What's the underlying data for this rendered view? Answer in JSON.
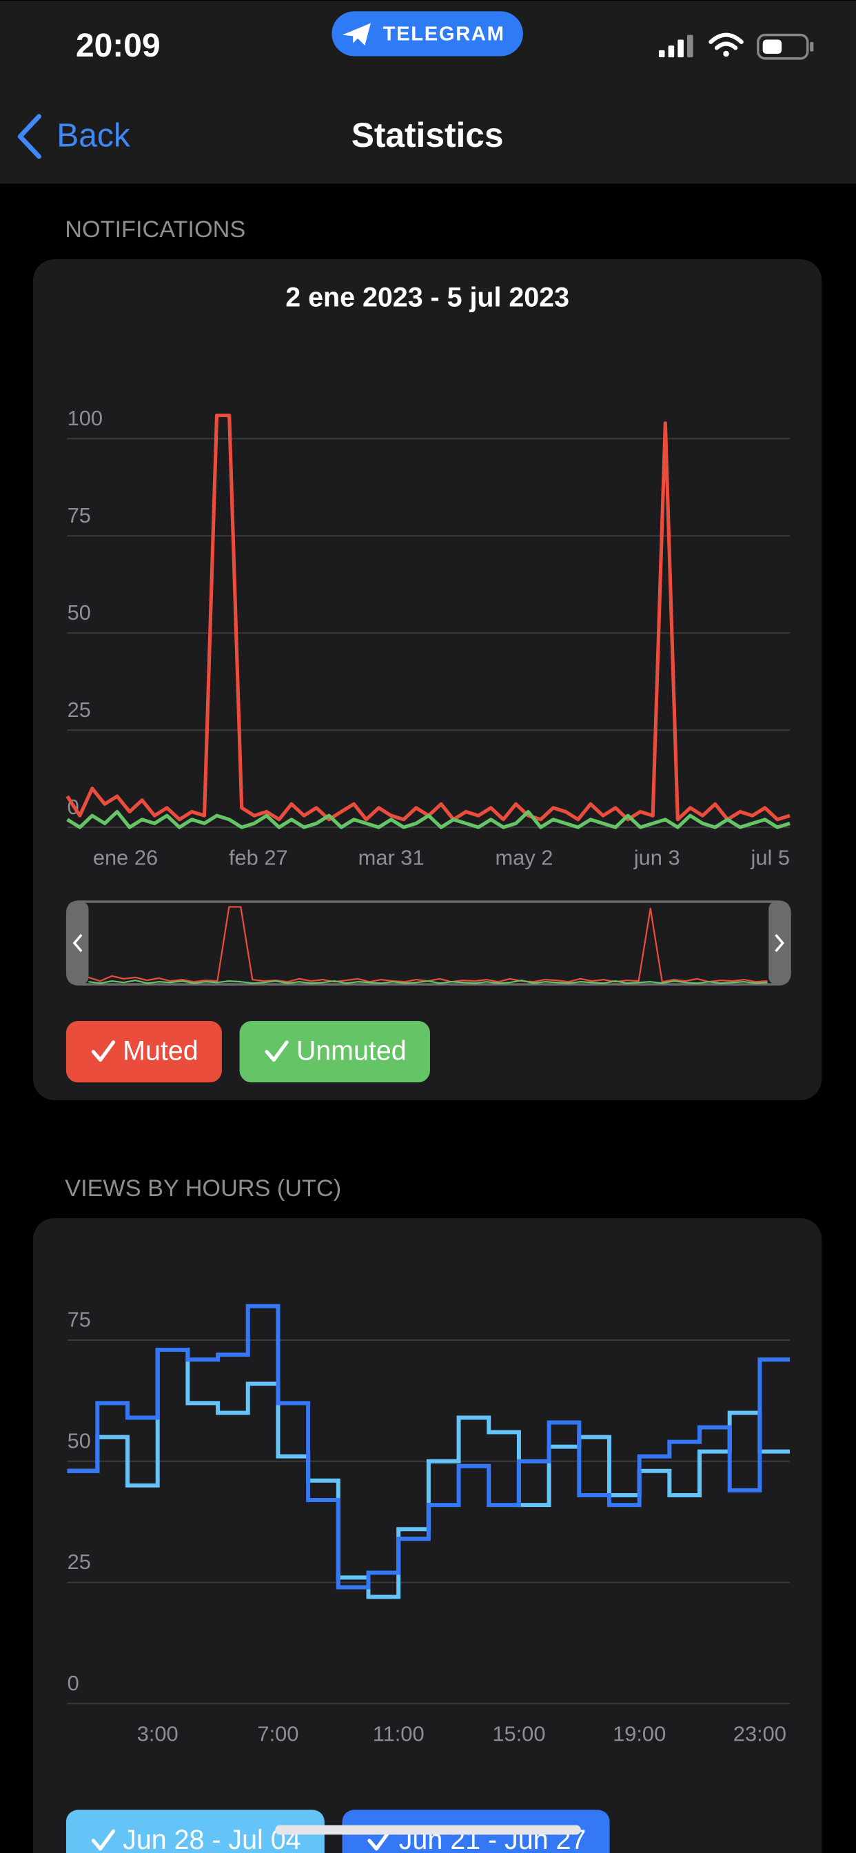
{
  "status_bar": {
    "time": "20:09",
    "app": "TELEGRAM"
  },
  "nav": {
    "back": "Back",
    "title": "Statistics"
  },
  "sections": [
    "NOTIFICATIONS",
    "VIEWS BY HOURS (UTC)"
  ],
  "chart_data": [
    {
      "type": "line",
      "title": "2 ene 2023 - 5 jul 2023",
      "x": [
        "2023-01-12",
        "2023-01-15",
        "2023-01-18",
        "2023-01-21",
        "2023-01-24",
        "2023-01-27",
        "2023-01-30",
        "2023-02-02",
        "2023-02-05",
        "2023-02-08",
        "2023-02-11",
        "2023-02-14",
        "2023-02-17",
        "2023-02-20",
        "2023-02-23",
        "2023-02-26",
        "2023-03-01",
        "2023-03-04",
        "2023-03-07",
        "2023-03-10",
        "2023-03-13",
        "2023-03-16",
        "2023-03-19",
        "2023-03-22",
        "2023-03-25",
        "2023-03-28",
        "2023-03-31",
        "2023-04-03",
        "2023-04-06",
        "2023-04-09",
        "2023-04-12",
        "2023-04-15",
        "2023-04-18",
        "2023-04-21",
        "2023-04-24",
        "2023-04-27",
        "2023-04-30",
        "2023-05-03",
        "2023-05-06",
        "2023-05-09",
        "2023-05-12",
        "2023-05-15",
        "2023-05-18",
        "2023-05-21",
        "2023-05-24",
        "2023-05-27",
        "2023-05-30",
        "2023-06-02",
        "2023-06-05",
        "2023-06-08",
        "2023-06-11",
        "2023-06-14",
        "2023-06-17",
        "2023-06-20",
        "2023-06-23",
        "2023-06-26",
        "2023-06-29",
        "2023-07-02",
        "2023-07-05"
      ],
      "xlim": [
        "2023-01-12",
        "2023-07-05"
      ],
      "xticks": [
        {
          "value": "2023-01-26",
          "label": "ene 26"
        },
        {
          "value": "2023-02-27",
          "label": "feb 27"
        },
        {
          "value": "2023-03-31",
          "label": "mar 31"
        },
        {
          "value": "2023-05-02",
          "label": "may 2"
        },
        {
          "value": "2023-06-03",
          "label": "jun 3"
        },
        {
          "value": "2023-07-05",
          "label": "jul 5"
        }
      ],
      "ylim": [
        0,
        110
      ],
      "yticks": [
        0,
        25,
        50,
        75,
        100
      ],
      "grid": true,
      "series": [
        {
          "name": "Muted",
          "color": "#eb4d3d",
          "values": [
            8,
            3,
            10,
            6,
            8,
            4,
            7,
            3,
            5,
            2,
            4,
            3,
            106,
            106,
            5,
            3,
            4,
            2,
            6,
            3,
            5,
            2,
            4,
            6,
            2,
            5,
            3,
            2,
            5,
            3,
            6,
            2,
            4,
            3,
            5,
            2,
            6,
            3,
            2,
            5,
            4,
            2,
            6,
            3,
            5,
            2,
            4,
            3,
            104,
            2,
            5,
            3,
            6,
            2,
            4,
            3,
            5,
            2,
            3
          ]
        },
        {
          "name": "Unmuted",
          "color": "#65c466",
          "values": [
            2,
            0,
            3,
            1,
            4,
            0,
            2,
            1,
            3,
            0,
            2,
            1,
            3,
            2,
            0,
            1,
            3,
            0,
            2,
            0,
            1,
            3,
            0,
            2,
            1,
            0,
            2,
            0,
            1,
            3,
            0,
            2,
            1,
            0,
            2,
            0,
            1,
            4,
            0,
            2,
            1,
            0,
            2,
            1,
            0,
            3,
            0,
            1,
            2,
            0,
            3,
            1,
            0,
            2,
            0,
            1,
            2,
            0,
            1
          ]
        }
      ]
    },
    {
      "type": "step",
      "categories": [
        null,
        null,
        null,
        "3:00",
        null,
        null,
        null,
        "7:00",
        null,
        null,
        null,
        "11:00",
        null,
        null,
        null,
        "15:00",
        null,
        null,
        null,
        "19:00",
        null,
        null,
        null,
        "23:00"
      ],
      "ylim": [
        0,
        87
      ],
      "yticks": [
        0,
        25,
        50,
        75
      ],
      "grid": true,
      "series": [
        {
          "name": "Jun 28 - Jul 04",
          "color": "#64c3f7",
          "values": [
            48,
            55,
            45,
            73,
            62,
            60,
            66,
            51,
            46,
            26,
            22,
            36,
            50,
            59,
            56,
            41,
            53,
            55,
            43,
            48,
            43,
            52,
            60,
            52
          ]
        },
        {
          "name": "Jun 21 - Jun 27",
          "color": "#3478f6",
          "values": [
            48,
            62,
            59,
            73,
            71,
            72,
            82,
            62,
            42,
            24,
            27,
            34,
            41,
            49,
            41,
            50,
            58,
            43,
            41,
            51,
            54,
            57,
            44,
            71
          ]
        }
      ]
    }
  ]
}
